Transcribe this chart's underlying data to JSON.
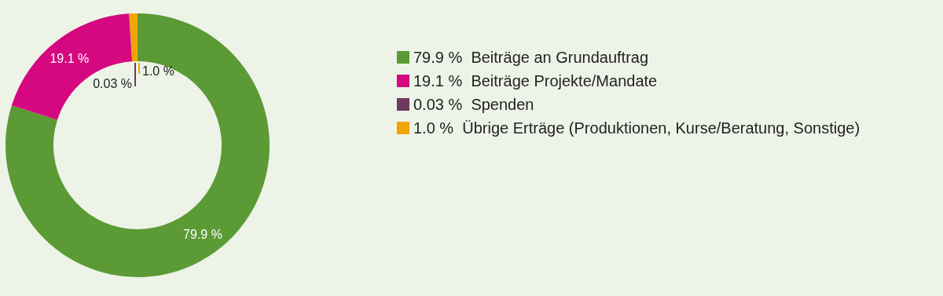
{
  "chart_data": {
    "type": "donut",
    "categories": [
      "Beiträge an Grundauftrag",
      "Beiträge Projekte/Mandate",
      "Spenden",
      "Übrige Erträge (Produktionen, Kurse/Beratung, Sonstige)"
    ],
    "values": [
      79.9,
      19.1,
      0.03,
      1.0
    ],
    "colors": [
      "#5b9a35",
      "#d6087f",
      "#6e3a5e",
      "#f0a500"
    ],
    "value_labels": [
      "79.9 %",
      "19.1 %",
      "0.03 %",
      "1.0 %"
    ],
    "legend": "right"
  }
}
